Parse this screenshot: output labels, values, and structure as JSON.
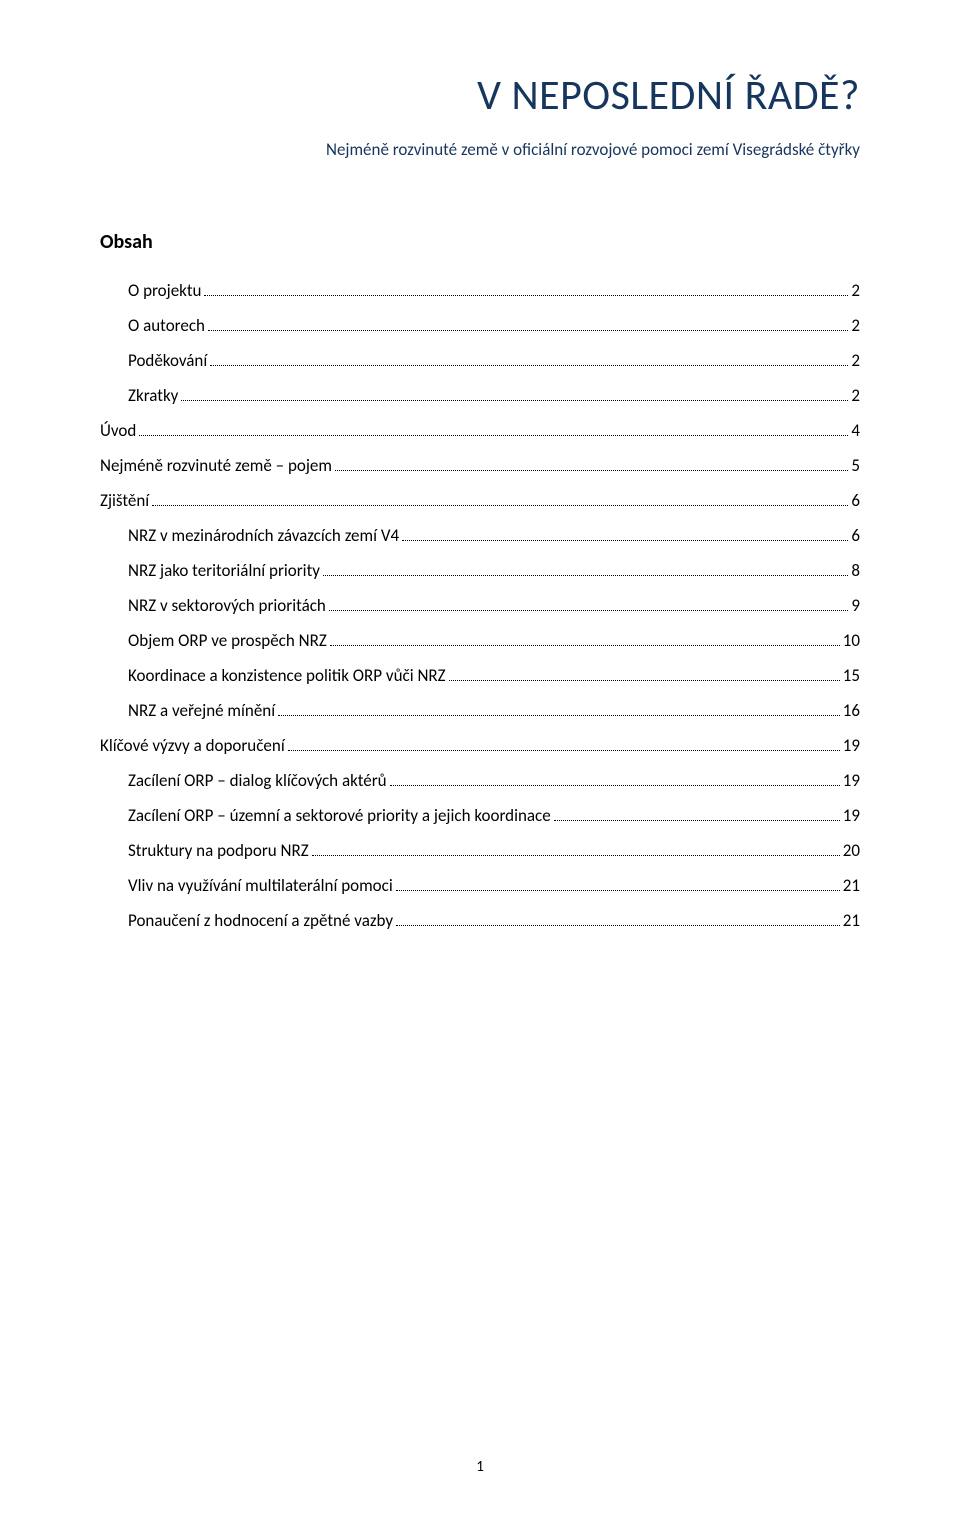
{
  "title": "V NEPOSLEDNÍ ŘADĚ?",
  "subtitle": "Nejméně rozvinuté země v oficiální rozvojové pomoci zemí Visegrádské čtyřky",
  "toc_heading": "Obsah",
  "page_number": "1",
  "toc": {
    "items": [
      {
        "label": "O projektu",
        "page": "2",
        "level": 1
      },
      {
        "label": "O autorech",
        "page": "2",
        "level": 1
      },
      {
        "label": "Poděkování",
        "page": "2",
        "level": 1
      },
      {
        "label": "Zkratky",
        "page": "2",
        "level": 1
      },
      {
        "label": "Úvod",
        "page": "4",
        "level": 0
      },
      {
        "label": "Nejméně rozvinuté země – pojem",
        "page": "5",
        "level": 0
      },
      {
        "label": "Zjištění",
        "page": "6",
        "level": 0
      },
      {
        "label": "NRZ v mezinárodních závazcích zemí V4",
        "page": "6",
        "level": 1
      },
      {
        "label": "NRZ jako teritoriální priority",
        "page": "8",
        "level": 1
      },
      {
        "label": "NRZ v sektorových prioritách",
        "page": "9",
        "level": 1
      },
      {
        "label": "Objem ORP ve prospěch NRZ",
        "page": "10",
        "level": 1
      },
      {
        "label": "Koordinace a konzistence politik ORP vůči NRZ",
        "page": "15",
        "level": 1
      },
      {
        "label": "NRZ a veřejné mínění",
        "page": "16",
        "level": 1
      },
      {
        "label": "Klíčové výzvy a doporučení",
        "page": "19",
        "level": 0
      },
      {
        "label": "Zacílení ORP – dialog klíčových aktérů",
        "page": "19",
        "level": 1
      },
      {
        "label": "Zacílení ORP – územní a sektorové priority a jejich koordinace",
        "page": "19",
        "level": 1
      },
      {
        "label": "Struktury na podporu NRZ",
        "page": "20",
        "level": 1
      },
      {
        "label": "Vliv na využívání multilaterální pomoci",
        "page": "21",
        "level": 1
      },
      {
        "label": "Ponaučení z hodnocení a zpětné vazby",
        "page": "21",
        "level": 1
      }
    ]
  },
  "colors": {
    "heading": "#17365d",
    "text": "#000000",
    "background": "#ffffff"
  },
  "typography": {
    "title_fontsize": 42,
    "subtitle_fontsize": 17,
    "toc_heading_fontsize": 20,
    "toc_fontsize": 17,
    "font_family_heading": "Calibri",
    "font_family_body": "Calibri"
  }
}
